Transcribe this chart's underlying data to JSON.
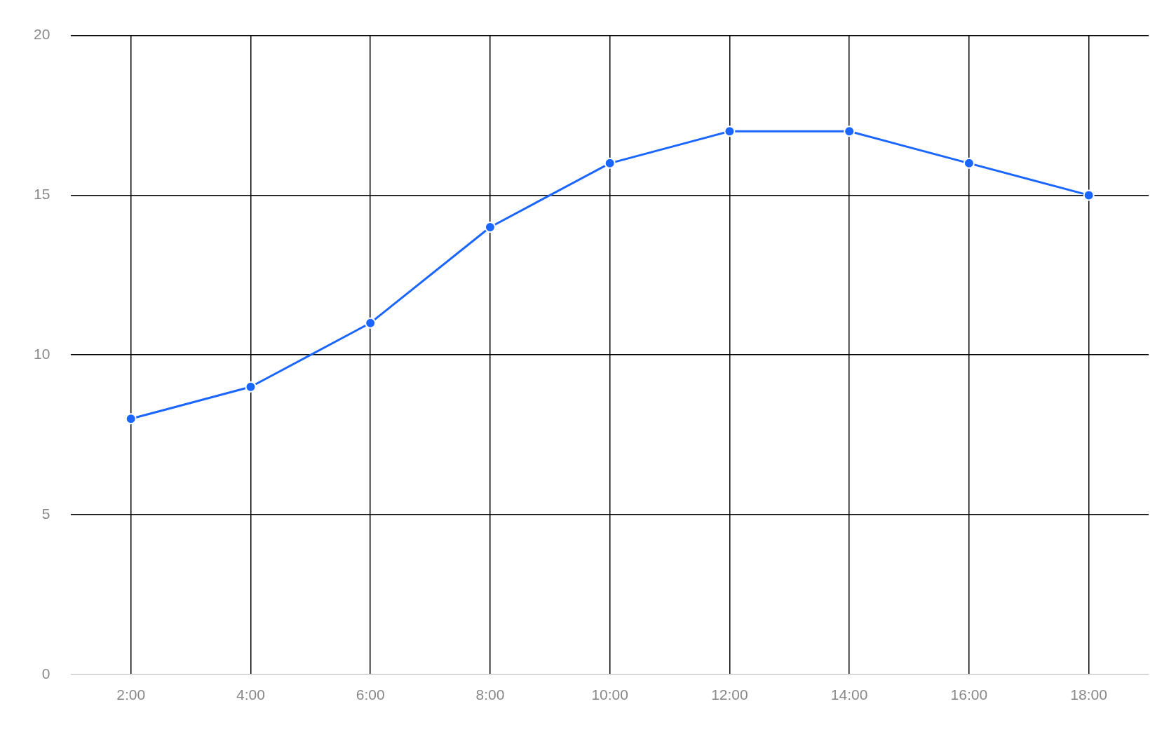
{
  "chart_data": {
    "type": "line",
    "categories": [
      "2:00",
      "4:00",
      "6:00",
      "8:00",
      "10:00",
      "12:00",
      "14:00",
      "16:00",
      "18:00"
    ],
    "series": [
      {
        "color": "#1a66ff",
        "values": [
          8,
          9,
          11,
          14,
          16,
          17,
          17,
          16,
          15
        ]
      }
    ],
    "ylim": [
      0,
      20
    ],
    "yticks": [
      0,
      5,
      10,
      15,
      20
    ],
    "grid": true,
    "marker": "circle",
    "line_style": "solid",
    "legend": false
  }
}
